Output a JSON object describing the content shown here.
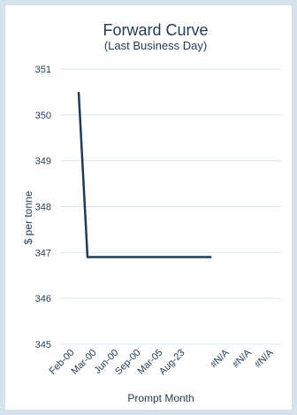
{
  "chart_data": {
    "type": "line",
    "title": "Forward Curve",
    "subtitle": "(Last Business Day)",
    "xlabel": "Prompt Month",
    "ylabel": "$ per tonne",
    "ylim": [
      345,
      351
    ],
    "yticks": [
      345,
      346,
      347,
      348,
      349,
      350,
      351
    ],
    "categories": [
      "Feb-00",
      "Mar-00",
      "Jun-00",
      "Sep-00",
      "Mar-05",
      "Aug-23",
      "",
      "#N/A",
      "#N/A",
      "#N/A"
    ],
    "series": [
      {
        "values": [
          350.5,
          346.9,
          346.9,
          346.9,
          346.9,
          346.9,
          346.9,
          null,
          null,
          null
        ],
        "color": "#1f3b5a"
      }
    ],
    "grid": true,
    "legend": "none"
  }
}
